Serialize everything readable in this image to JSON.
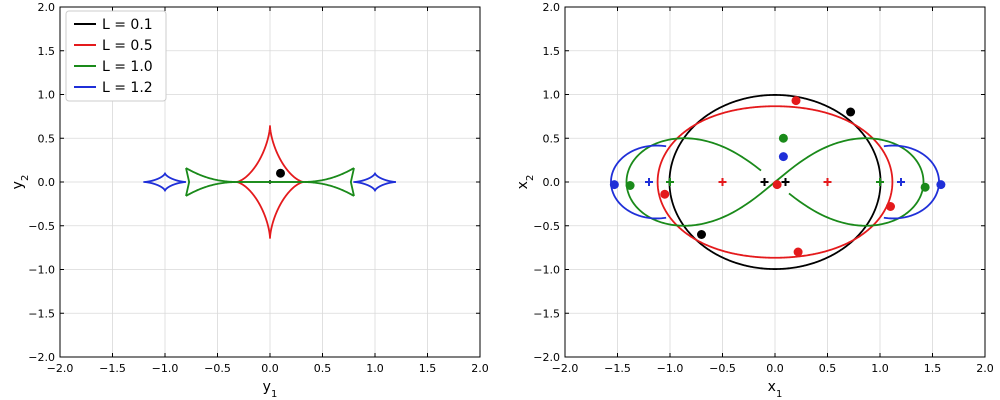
{
  "chart_data": [
    {
      "type": "line",
      "xlabel": "y",
      "xlabel_sub": "1",
      "ylabel": "y",
      "ylabel_sub": "2",
      "xlim": [
        -2.0,
        2.0
      ],
      "ylim": [
        -2.0,
        2.0
      ],
      "xticks": [
        -2.0,
        -1.5,
        -1.0,
        -0.5,
        0.0,
        0.5,
        1.0,
        1.5,
        2.0
      ],
      "yticks": [
        -2.0,
        -1.5,
        -1.0,
        -0.5,
        0.0,
        0.5,
        1.0,
        1.5,
        2.0
      ],
      "xtick_labels": [
        "−2.0",
        "−1.5",
        "−1.0",
        "−0.5",
        "0.0",
        "0.5",
        "1.0",
        "1.5",
        "2.0"
      ],
      "ytick_labels": [
        "−2.0",
        "−1.5",
        "−1.0",
        "−0.5",
        "0.0",
        "0.5",
        "1.0",
        "1.5",
        "2.0"
      ],
      "grid": true,
      "legend": "top-left",
      "series": [
        {
          "name": "L = 0.1",
          "color": "#000000",
          "curve": "astroid",
          "params": {
            "cx": 0.0,
            "ax": 0.012,
            "ay": 0.012
          }
        },
        {
          "name": "L = 0.5",
          "color": "#e41a1c",
          "curve": "astroid",
          "params": {
            "cx": 0.0,
            "ax": 0.32,
            "ay": 0.64
          }
        },
        {
          "name": "L = 1.0",
          "color": "#1a8a1a",
          "curve": "caustic",
          "params": {
            "half_width": 0.8,
            "tip": 0.16,
            "waist": 0.3
          }
        },
        {
          "name": "L = 1.2",
          "color": "#1f2fd8",
          "curve": "double_astroid",
          "params": {
            "cx": 1.0,
            "ax": 0.2,
            "ay": 0.1
          }
        }
      ],
      "points": [
        {
          "x": 0.1,
          "y": 0.1,
          "color": "#000000",
          "marker": "dot"
        }
      ]
    },
    {
      "type": "line",
      "xlabel": "x",
      "xlabel_sub": "1",
      "ylabel": "x",
      "ylabel_sub": "2",
      "xlim": [
        -2.0,
        2.0
      ],
      "ylim": [
        -2.0,
        2.0
      ],
      "xticks": [
        -2.0,
        -1.5,
        -1.0,
        -0.5,
        0.0,
        0.5,
        1.0,
        1.5,
        2.0
      ],
      "yticks": [
        -2.0,
        -1.5,
        -1.0,
        -0.5,
        0.0,
        0.5,
        1.0,
        1.5,
        2.0
      ],
      "xtick_labels": [
        "−2.0",
        "−1.5",
        "−1.0",
        "−0.5",
        "0.0",
        "0.5",
        "1.0",
        "1.5",
        "2.0"
      ],
      "ytick_labels": [
        "−2.0",
        "−1.5",
        "−1.0",
        "−0.5",
        "0.0",
        "0.5",
        "1.0",
        "1.5",
        "2.0"
      ],
      "grid": true,
      "series": [
        {
          "color": "#000000",
          "curve": "lemniscate",
          "params": {
            "L": 0.1
          }
        },
        {
          "color": "#e41a1c",
          "curve": "lemniscate",
          "params": {
            "L": 0.5
          }
        },
        {
          "color": "#1a8a1a",
          "curve": "lemniscate",
          "params": {
            "L": 1.0
          }
        },
        {
          "color": "#1f2fd8",
          "curve": "lemniscate",
          "params": {
            "L": 1.2
          }
        }
      ],
      "points": [
        {
          "x": 0.72,
          "y": 0.8,
          "color": "#000000",
          "marker": "dot"
        },
        {
          "x": -0.7,
          "y": -0.6,
          "color": "#000000",
          "marker": "dot"
        },
        {
          "x": 0.2,
          "y": 0.93,
          "color": "#e41a1c",
          "marker": "dot"
        },
        {
          "x": -1.05,
          "y": -0.14,
          "color": "#e41a1c",
          "marker": "dot"
        },
        {
          "x": 1.1,
          "y": -0.28,
          "color": "#e41a1c",
          "marker": "dot"
        },
        {
          "x": 0.22,
          "y": -0.8,
          "color": "#e41a1c",
          "marker": "dot"
        },
        {
          "x": 0.02,
          "y": -0.03,
          "color": "#e41a1c",
          "marker": "dot"
        },
        {
          "x": 0.08,
          "y": 0.5,
          "color": "#1a8a1a",
          "marker": "dot"
        },
        {
          "x": -1.38,
          "y": -0.04,
          "color": "#1a8a1a",
          "marker": "dot"
        },
        {
          "x": 1.43,
          "y": -0.06,
          "color": "#1a8a1a",
          "marker": "dot"
        },
        {
          "x": 0.08,
          "y": 0.29,
          "color": "#1f2fd8",
          "marker": "dot"
        },
        {
          "x": -1.53,
          "y": -0.03,
          "color": "#1f2fd8",
          "marker": "dot"
        },
        {
          "x": 1.58,
          "y": -0.03,
          "color": "#1f2fd8",
          "marker": "dot"
        },
        {
          "x": -0.1,
          "y": 0.0,
          "color": "#000000",
          "marker": "plus"
        },
        {
          "x": 0.1,
          "y": 0.0,
          "color": "#000000",
          "marker": "plus"
        },
        {
          "x": -0.5,
          "y": 0.0,
          "color": "#e41a1c",
          "marker": "plus"
        },
        {
          "x": 0.5,
          "y": 0.0,
          "color": "#e41a1c",
          "marker": "plus"
        },
        {
          "x": -1.0,
          "y": 0.0,
          "color": "#1a8a1a",
          "marker": "plus"
        },
        {
          "x": 1.0,
          "y": 0.0,
          "color": "#1a8a1a",
          "marker": "plus"
        },
        {
          "x": -1.2,
          "y": 0.0,
          "color": "#1f2fd8",
          "marker": "plus"
        },
        {
          "x": 1.2,
          "y": 0.0,
          "color": "#1f2fd8",
          "marker": "plus"
        }
      ]
    }
  ]
}
